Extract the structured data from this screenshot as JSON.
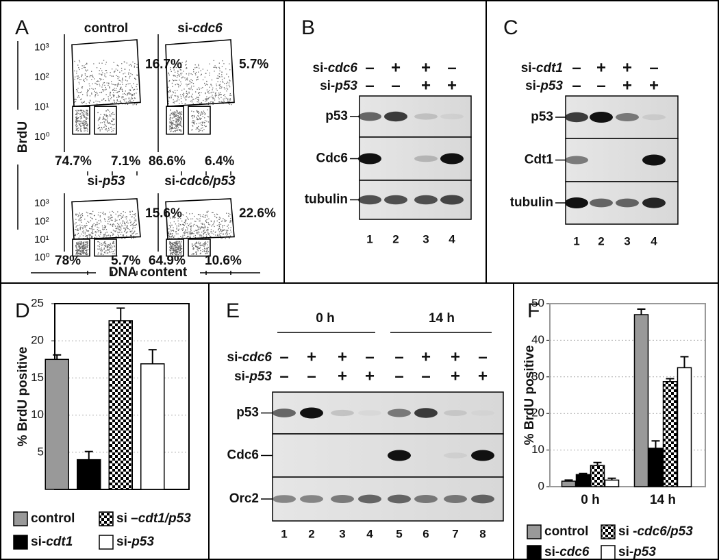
{
  "panels": {
    "A": {
      "label": "A",
      "y_axis_label": "BrdU",
      "x_axis_label": "DNA content",
      "yticks": [
        "10³",
        "10²",
        "10¹",
        "10⁰"
      ],
      "plots": [
        {
          "title": "control",
          "upper": "16.7%",
          "lower_left": "74.7%",
          "lower_right": "7.1%"
        },
        {
          "title": "si-cdc6",
          "upper": "5.7%",
          "lower_left": "86.6%",
          "lower_right": "6.4%"
        },
        {
          "title": "si-p53",
          "upper": "15.6%",
          "lower_left": "78%",
          "lower_right": "5.7%"
        },
        {
          "title": "si-cdc6/p53",
          "upper": "22.6%",
          "lower_left": "64.9%",
          "lower_right": "10.6%"
        }
      ]
    },
    "B": {
      "label": "B",
      "conditions": [
        {
          "name": "si-cdc6",
          "signs": [
            "–",
            "+",
            "+",
            "–"
          ]
        },
        {
          "name": "si-p53",
          "signs": [
            "–",
            "–",
            "+",
            "+"
          ]
        }
      ],
      "bands": [
        "p53",
        "Cdc6",
        "tubulin"
      ],
      "lanes": [
        1,
        2,
        3,
        4
      ]
    },
    "C": {
      "label": "C",
      "conditions": [
        {
          "name": "si-cdt1",
          "signs": [
            "–",
            "+",
            "+",
            "–"
          ]
        },
        {
          "name": "si-p53",
          "signs": [
            "–",
            "–",
            "+",
            "+"
          ]
        }
      ],
      "bands": [
        "p53",
        "Cdt1",
        "tubulin"
      ],
      "lanes": [
        1,
        2,
        3,
        4
      ]
    },
    "E": {
      "label": "E",
      "timepoints": [
        "0 h",
        "14 h"
      ],
      "conditions": [
        {
          "name": "si-cdc6",
          "signs": [
            "–",
            "+",
            "+",
            "–",
            "–",
            "+",
            "+",
            "–"
          ]
        },
        {
          "name": "si-p53",
          "signs": [
            "–",
            "–",
            "+",
            "+",
            "–",
            "–",
            "+",
            "+"
          ]
        }
      ],
      "bands": [
        "p53",
        "Cdc6",
        "Orc2"
      ],
      "lanes": [
        1,
        2,
        3,
        4,
        5,
        6,
        7,
        8
      ]
    }
  },
  "chart_data": [
    {
      "type": "bar",
      "panel_label": "D",
      "ylabel": "% BrdU positive",
      "ylim": [
        0,
        25
      ],
      "yticks": [
        5,
        10,
        15,
        20,
        25
      ],
      "grid": true,
      "series": [
        {
          "name": "control",
          "color": "#999999",
          "values": [
            17.5
          ],
          "errors": [
            0.6
          ]
        },
        {
          "name": "si-cdt1",
          "color": "#000000",
          "values": [
            4
          ],
          "errors": [
            1.1
          ]
        },
        {
          "name": "si –cdt1/p53",
          "color": "#000000",
          "pattern": "checker",
          "values": [
            22.7
          ],
          "errors": [
            1.7
          ]
        },
        {
          "name": "si-p53",
          "color": "#ffffff",
          "values": [
            16.9
          ],
          "errors": [
            1.9
          ]
        }
      ]
    },
    {
      "type": "bar",
      "panel_label": "F",
      "ylabel": "% BrdU positive",
      "categories": [
        "0 h",
        "14 h"
      ],
      "ylim": [
        0,
        50
      ],
      "yticks": [
        0,
        10,
        20,
        30,
        40,
        50
      ],
      "grid": true,
      "series": [
        {
          "name": "control",
          "color": "#999999",
          "values": [
            1.5,
            47
          ],
          "errors": [
            0.3,
            1.5
          ]
        },
        {
          "name": "si-cdc6",
          "color": "#000000",
          "values": [
            3.3,
            10.5
          ],
          "errors": [
            0.3,
            2
          ]
        },
        {
          "name": "si -cdc6/p53",
          "color": "#000000",
          "pattern": "checker",
          "values": [
            5.8,
            28.7
          ],
          "errors": [
            0.8,
            0.8
          ]
        },
        {
          "name": "si-p53",
          "color": "#ffffff",
          "values": [
            1.8,
            32.5
          ],
          "errors": [
            0.5,
            3
          ]
        }
      ]
    }
  ]
}
